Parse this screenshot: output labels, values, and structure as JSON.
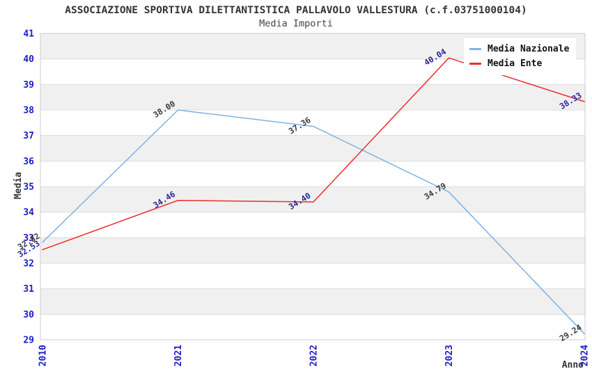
{
  "page": {
    "title": "ASSOCIAZIONE SPORTIVA DILETTANTISTICA PALLAVOLO VALLESTURA (c.f.03751000104)",
    "subtitle": "Media Importi"
  },
  "chart_data": {
    "type": "line",
    "title": "ASSOCIAZIONE SPORTIVA DILETTANTISTICA PALLAVOLO VALLESTURA (c.f.03751000104)",
    "subtitle": "Media Importi",
    "xlabel": "Anno",
    "ylabel": "Media",
    "categories": [
      "2010",
      "2021",
      "2022",
      "2023",
      "2024"
    ],
    "series": [
      {
        "name": "Media Nazionale",
        "color": "#7EB2E2",
        "label_color": "#3C3C3C",
        "values": [
          32.82,
          38.0,
          37.36,
          34.79,
          29.24
        ]
      },
      {
        "name": "Media Ente",
        "color": "#EE2C2C",
        "label_color": "#26269C",
        "values": [
          32.53,
          34.46,
          34.4,
          40.04,
          38.33
        ]
      }
    ],
    "ylim": [
      29,
      41
    ],
    "ytick_step": 1,
    "grid": true,
    "legend_position": "top-right",
    "band_colors": [
      "#F0F0F0",
      "#FFFFFF"
    ],
    "grid_color": "#DCDCDC",
    "plot_border_color": "#CCCCCC",
    "axis_tick_color": "#1A1ACB",
    "axis_label_color": "#333333",
    "value_label_decimals": 2
  }
}
